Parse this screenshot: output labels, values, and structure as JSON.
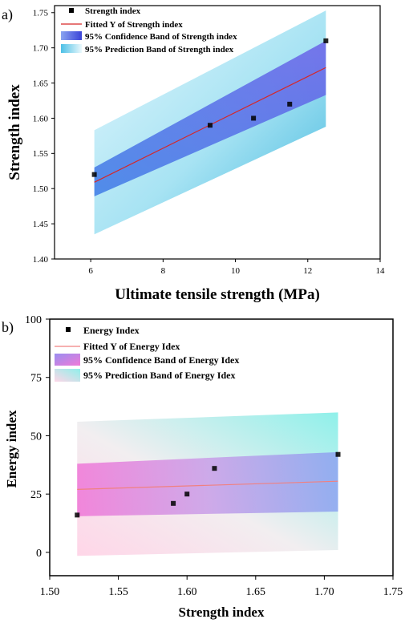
{
  "chart_data": [
    {
      "type": "scatter",
      "panel_label": "a)",
      "xlabel": "Ultimate tensile strength (MPa)",
      "ylabel": "Strength index",
      "xlim": [
        5,
        14
      ],
      "ylim": [
        1.4,
        1.76
      ],
      "x_ticks": [
        "6",
        "8",
        "10",
        "12",
        "14"
      ],
      "y_ticks": [
        "1.40",
        "1.45",
        "1.50",
        "1.55",
        "1.60",
        "1.65",
        "1.70",
        "1.75"
      ],
      "grid": false,
      "legend_position": "top-left",
      "series": [
        {
          "name": "Strength index",
          "kind": "points",
          "x": [
            6.1,
            9.3,
            10.5,
            11.5,
            12.5
          ],
          "y": [
            1.52,
            1.59,
            1.6,
            1.62,
            1.71
          ]
        },
        {
          "name": "Fitted Y of Strength index",
          "kind": "line",
          "x": [
            6.1,
            12.5
          ],
          "y": [
            1.509,
            1.672
          ]
        },
        {
          "name": "95% Confidence Band of Strength index",
          "kind": "band",
          "x": [
            6.1,
            12.5
          ],
          "lower": [
            1.489,
            1.633
          ],
          "upper": [
            1.53,
            1.71
          ]
        },
        {
          "name": "95% Prediction Band of Strength index",
          "kind": "band",
          "x": [
            6.1,
            12.5
          ],
          "lower": [
            1.435,
            1.588
          ],
          "upper": [
            1.583,
            1.753
          ]
        }
      ],
      "colors": {
        "points": "#000000",
        "fit": "#d62728",
        "confidence": "#3f5fe0",
        "prediction": "#5ec8e6"
      }
    },
    {
      "type": "scatter",
      "panel_label": "b)",
      "xlabel": "Strength index",
      "ylabel": "Energy index",
      "xlim": [
        1.5,
        1.75
      ],
      "ylim": [
        -10,
        100
      ],
      "x_ticks": [
        "1.50",
        "1.55",
        "1.60",
        "1.65",
        "1.70",
        "1.75"
      ],
      "y_ticks": [
        "0",
        "25",
        "50",
        "75",
        "100"
      ],
      "grid": false,
      "legend_position": "top-left",
      "series": [
        {
          "name": "Energy Index",
          "kind": "points",
          "x": [
            1.52,
            1.59,
            1.6,
            1.62,
            1.71
          ],
          "y": [
            16,
            21,
            25,
            36,
            42
          ]
        },
        {
          "name": "Fitted Y of Energy Idex",
          "kind": "line",
          "x": [
            1.52,
            1.71
          ],
          "y": [
            27,
            30.5
          ]
        },
        {
          "name": "95% Confidence Band of Energy Idex",
          "kind": "band",
          "x": [
            1.52,
            1.71
          ],
          "lower": [
            15.5,
            17.5
          ],
          "upper": [
            38,
            43
          ]
        },
        {
          "name": "95% Prediction Band of Energy Idex",
          "kind": "band",
          "x": [
            1.52,
            1.71
          ],
          "lower": [
            -1.5,
            1
          ],
          "upper": [
            56,
            60
          ]
        }
      ],
      "colors": {
        "points": "#000000",
        "fit": "#f08080",
        "confidence": "#d36be0",
        "prediction": "#8ff0ea"
      }
    }
  ]
}
